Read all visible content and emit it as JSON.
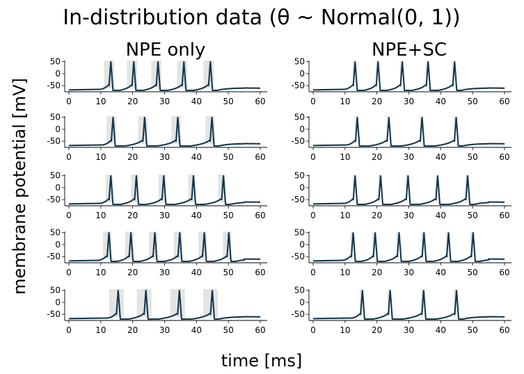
{
  "title": "In-distribution data (θ ~ Normal(0, 1))",
  "xlabel": "time [ms]",
  "ylabel": "membrane potential [mV]",
  "chart_data": {
    "type": "line",
    "title": "In-distribution data (θ ~ Normal(0, 1))",
    "xlabel": "time [ms]",
    "ylabel": "membrane potential [mV]",
    "xlim": [
      0,
      60
    ],
    "ylim": [
      -70,
      55
    ],
    "xticks": [
      0,
      10,
      20,
      30,
      40,
      50,
      60
    ],
    "yticks": [
      50,
      0,
      -50
    ],
    "grid": false,
    "columns": [
      {
        "title": "NPE only",
        "rows": [
          {
            "spike_times": [
              12.6,
              19.8,
              27.4,
              35.5,
              43.8
            ],
            "uncertainty_ms": 1.6
          },
          {
            "spike_times": [
              13.3,
              23.2,
              33.6,
              44.3
            ],
            "uncertainty_ms": 1.5
          },
          {
            "spike_times": [
              12.6,
              20.6,
              29.2,
              38.5,
              47.9
            ],
            "uncertainty_ms": 1.1
          },
          {
            "spike_times": [
              12.0,
              18.9,
              26.4,
              34.2,
              41.9,
              49.6
            ],
            "uncertainty_ms": 1.3
          },
          {
            "spike_times": [
              14.9,
              23.6,
              34.1,
              44.4
            ],
            "uncertainty_ms": 2.3
          }
        ]
      },
      {
        "title": "NPE+SC",
        "rows": [
          {
            "spike_times": [
              12.6,
              19.8,
              27.4,
              35.5,
              43.8
            ],
            "uncertainty_ms": 0.2
          },
          {
            "spike_times": [
              13.3,
              23.2,
              33.6,
              44.3
            ],
            "uncertainty_ms": 0.2
          },
          {
            "spike_times": [
              12.6,
              20.6,
              29.2,
              38.5,
              47.9
            ],
            "uncertainty_ms": 0.2
          },
          {
            "spike_times": [
              12.0,
              18.9,
              26.4,
              34.2,
              41.9,
              49.6
            ],
            "uncertainty_ms": 0.3
          },
          {
            "spike_times": [
              14.9,
              23.6,
              34.1,
              44.4
            ],
            "uncertainty_ms": 0.3
          }
        ]
      }
    ]
  }
}
